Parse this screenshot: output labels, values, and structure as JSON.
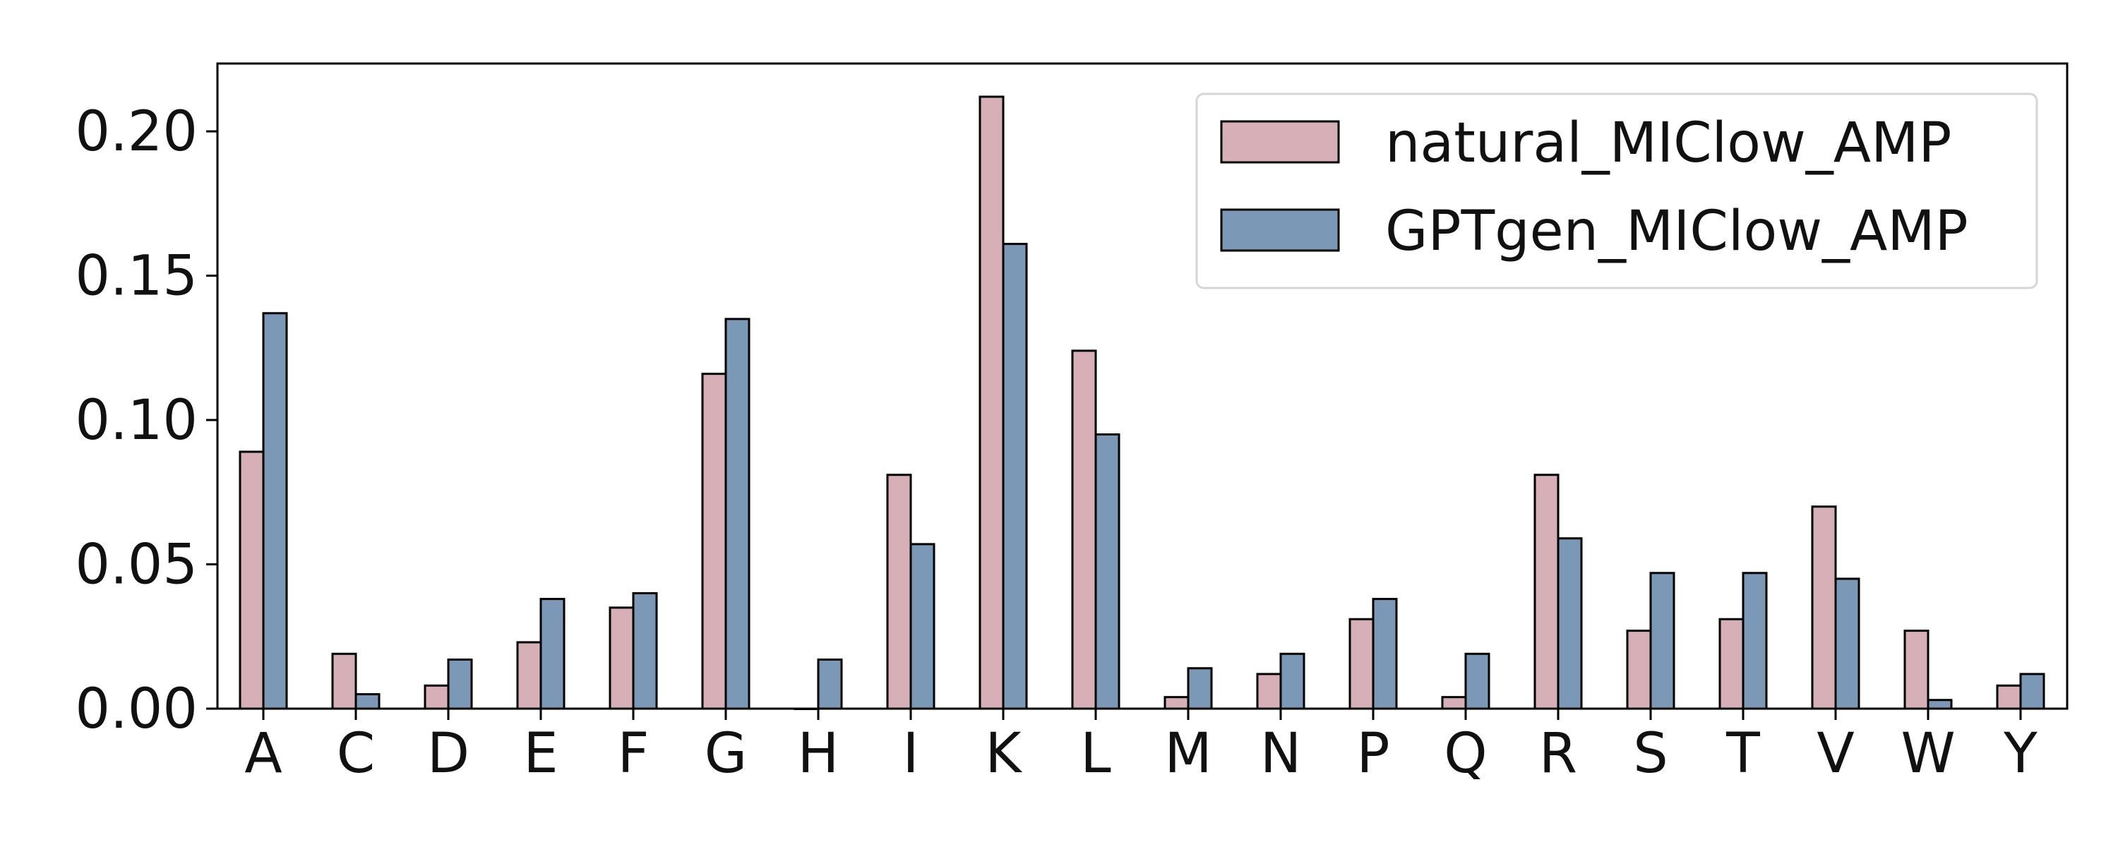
{
  "chart_data": {
    "type": "bar",
    "categories": [
      "A",
      "C",
      "D",
      "E",
      "F",
      "G",
      "H",
      "I",
      "K",
      "L",
      "M",
      "N",
      "P",
      "Q",
      "R",
      "S",
      "T",
      "V",
      "W",
      "Y"
    ],
    "series": [
      {
        "name": "natural_MIClow_AMP",
        "color": "#d7afb7",
        "values": [
          0.089,
          0.019,
          0.008,
          0.023,
          0.035,
          0.116,
          0.0,
          0.081,
          0.212,
          0.124,
          0.004,
          0.012,
          0.031,
          0.004,
          0.081,
          0.027,
          0.031,
          0.07,
          0.027,
          0.008
        ]
      },
      {
        "name": "GPTgen_MIClow_AMP",
        "color": "#7b98b6",
        "values": [
          0.137,
          0.005,
          0.017,
          0.038,
          0.04,
          0.135,
          0.017,
          0.057,
          0.161,
          0.095,
          0.014,
          0.019,
          0.038,
          0.019,
          0.059,
          0.047,
          0.047,
          0.045,
          0.003,
          0.012
        ]
      }
    ],
    "yticks": [
      "0.00",
      "0.05",
      "0.10",
      "0.15",
      "0.20"
    ],
    "ytick_values": [
      0,
      0.05,
      0.1,
      0.15,
      0.2
    ],
    "ylim": [
      0,
      0.2235
    ],
    "legend_position": "top-right",
    "grid": false
  }
}
